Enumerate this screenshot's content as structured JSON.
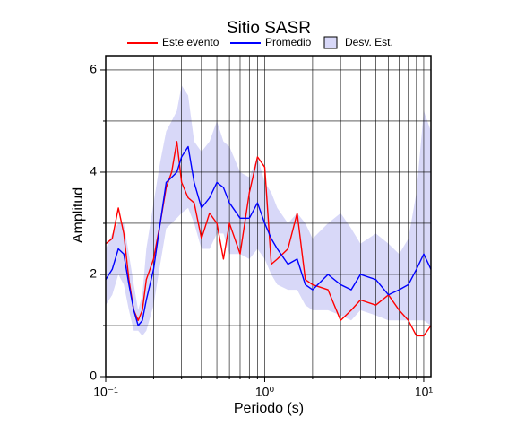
{
  "chart_data": {
    "type": "line",
    "title": "Sitio SASR",
    "x_label": "Periodo (s)",
    "y_label": "Amplitud",
    "xlog": true,
    "grid": true,
    "xlim": [
      0.1,
      11.1
    ],
    "ylim": [
      0,
      6.28
    ],
    "xticks": [
      {
        "value": 0.1,
        "label": "10⁻¹"
      },
      {
        "value": 1,
        "label": "10⁰"
      },
      {
        "value": 10,
        "label": "10¹"
      }
    ],
    "xgrid": [
      0.2,
      0.3,
      0.4,
      0.5,
      0.6,
      0.7,
      0.8,
      0.9,
      2,
      3,
      4,
      5,
      6,
      7,
      8,
      9
    ],
    "yticks": [
      0,
      2,
      4,
      6
    ],
    "yminor": [
      1,
      3,
      5
    ],
    "x": [
      0.1,
      0.11,
      0.12,
      0.13,
      0.14,
      0.15,
      0.16,
      0.17,
      0.18,
      0.2,
      0.22,
      0.24,
      0.26,
      0.28,
      0.3,
      0.33,
      0.36,
      0.4,
      0.45,
      0.5,
      0.55,
      0.6,
      0.7,
      0.8,
      0.9,
      1.0,
      1.1,
      1.2,
      1.4,
      1.6,
      1.8,
      2.0,
      2.5,
      3,
      3.5,
      4,
      5,
      6,
      7,
      8,
      9,
      10,
      11.1
    ],
    "band": {
      "name": "Desv. Est.",
      "color": "#d8d8f8",
      "upper": [
        2.5,
        2.8,
        3.0,
        3.0,
        2.4,
        1.8,
        1.3,
        1.6,
        2.5,
        3.4,
        4.2,
        4.8,
        5.0,
        5.2,
        5.7,
        5.5,
        4.6,
        4.4,
        4.6,
        5.0,
        4.6,
        4.5,
        4.0,
        3.9,
        4.3,
        3.8,
        3.6,
        3.3,
        3.0,
        3.2,
        3.0,
        2.7,
        3.0,
        3.2,
        2.9,
        2.6,
        2.8,
        2.6,
        2.4,
        2.7,
        3.6,
        5.2,
        4.8
      ],
      "lower": [
        1.4,
        1.6,
        2.0,
        1.8,
        1.3,
        0.9,
        0.9,
        0.8,
        0.9,
        1.4,
        2.2,
        2.9,
        3.0,
        3.1,
        3.2,
        3.3,
        3.0,
        2.5,
        2.5,
        2.8,
        2.8,
        2.4,
        2.4,
        2.3,
        2.5,
        2.3,
        2.0,
        1.8,
        1.7,
        1.7,
        1.4,
        1.3,
        1.3,
        1.2,
        1.1,
        1.3,
        1.2,
        1.1,
        1.1,
        1.1,
        1.1,
        1.1,
        1.0
      ]
    },
    "series": [
      {
        "name": "Este evento",
        "color": "#ff0000",
        "values": [
          2.6,
          2.7,
          3.3,
          2.8,
          1.9,
          1.3,
          1.1,
          1.3,
          1.9,
          2.3,
          3.0,
          3.7,
          4.0,
          4.6,
          3.8,
          3.5,
          3.4,
          2.7,
          3.2,
          3.0,
          2.3,
          3.0,
          2.4,
          3.6,
          4.3,
          4.1,
          2.2,
          2.3,
          2.5,
          3.2,
          1.9,
          1.8,
          1.7,
          1.1,
          1.3,
          1.5,
          1.4,
          1.6,
          1.3,
          1.1,
          0.8,
          0.8,
          1.0
        ]
      },
      {
        "name": "Promedio",
        "color": "#0000ff",
        "values": [
          1.9,
          2.1,
          2.5,
          2.4,
          1.8,
          1.3,
          1.0,
          1.1,
          1.5,
          2.1,
          3.0,
          3.8,
          3.9,
          4.0,
          4.3,
          4.5,
          3.8,
          3.3,
          3.5,
          3.8,
          3.7,
          3.4,
          3.1,
          3.1,
          3.4,
          3.0,
          2.7,
          2.5,
          2.2,
          2.3,
          1.8,
          1.7,
          2.0,
          1.8,
          1.7,
          2.0,
          1.9,
          1.6,
          1.7,
          1.8,
          2.1,
          2.4,
          2.1
        ]
      }
    ]
  }
}
